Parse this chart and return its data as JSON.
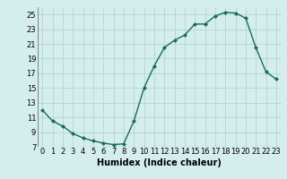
{
  "x": [
    0,
    1,
    2,
    3,
    4,
    5,
    6,
    7,
    8,
    9,
    10,
    11,
    12,
    13,
    14,
    15,
    16,
    17,
    18,
    19,
    20,
    21,
    22,
    23
  ],
  "y": [
    12.0,
    10.5,
    9.8,
    8.8,
    8.2,
    7.8,
    7.5,
    7.3,
    7.4,
    10.5,
    15.0,
    18.0,
    20.5,
    21.5,
    22.2,
    23.7,
    23.7,
    24.8,
    25.3,
    25.2,
    24.5,
    20.5,
    17.2,
    16.2
  ],
  "xlabel": "Humidex (Indice chaleur)",
  "xlim": [
    -0.5,
    23.5
  ],
  "ylim": [
    7,
    26
  ],
  "yticks": [
    7,
    9,
    11,
    13,
    15,
    17,
    19,
    21,
    23,
    25
  ],
  "xticks": [
    0,
    1,
    2,
    3,
    4,
    5,
    6,
    7,
    8,
    9,
    10,
    11,
    12,
    13,
    14,
    15,
    16,
    17,
    18,
    19,
    20,
    21,
    22,
    23
  ],
  "line_color": "#1a6b5a",
  "marker": "D",
  "marker_size": 2.0,
  "bg_color": "#d4eeee",
  "grid_color": "#b8d8d8",
  "label_fontsize": 7,
  "tick_fontsize": 6
}
